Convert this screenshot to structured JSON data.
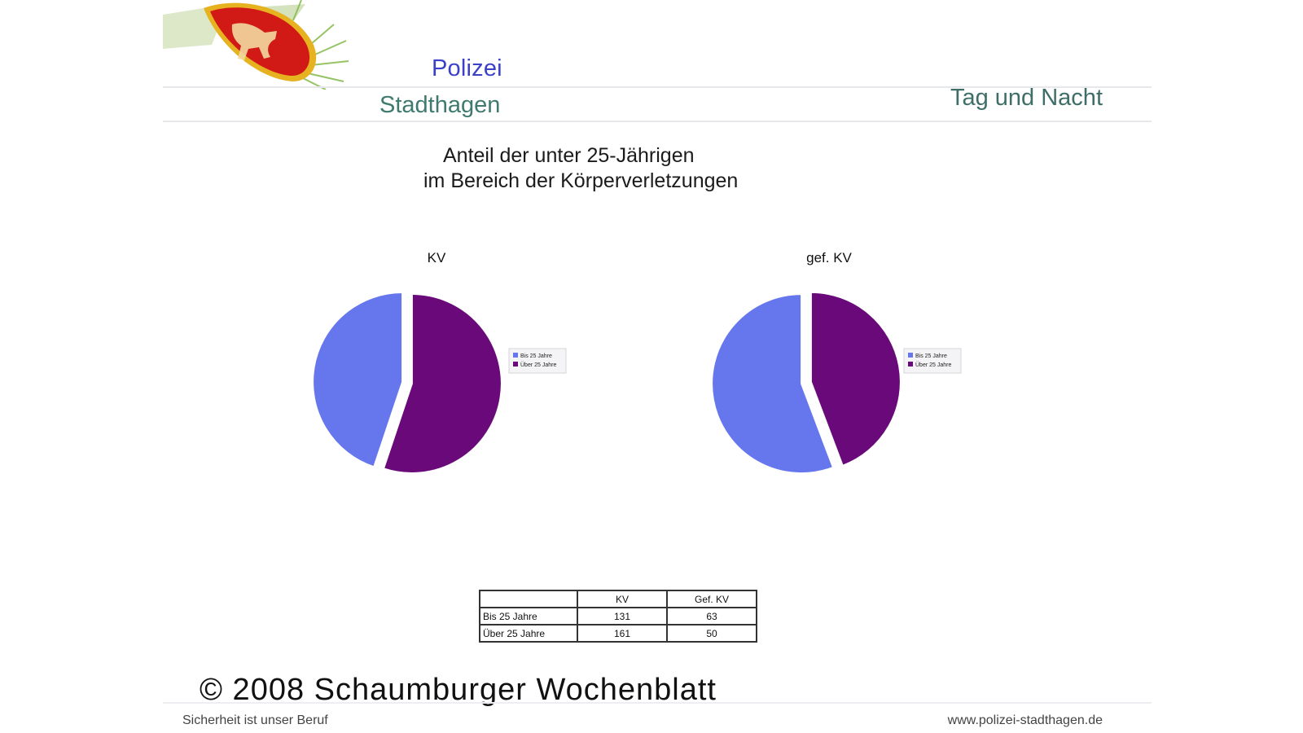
{
  "header": {
    "brand_top": "Polizei",
    "brand_bottom": "Stadthagen",
    "tagline": "Tag und Nacht"
  },
  "slide_title": {
    "line1": "Anteil der unter 25-Jährigen",
    "line2": "im Bereich der Körperverletzungen"
  },
  "chart_data": [
    {
      "type": "pie",
      "title": "KV",
      "categories": [
        "Bis 25 Jahre",
        "Über 25 Jahre"
      ],
      "values": [
        131,
        161
      ],
      "legend_position": "right",
      "colors": [
        "#6677ee",
        "#6a0a7a"
      ]
    },
    {
      "type": "pie",
      "title": "gef. KV",
      "categories": [
        "Bis 25 Jahre",
        "Über 25 Jahre"
      ],
      "values": [
        63,
        50
      ],
      "legend_position": "right",
      "colors": [
        "#6677ee",
        "#6a0a7a"
      ]
    }
  ],
  "table": {
    "headers": [
      "",
      "KV",
      "Gef. KV"
    ],
    "rows": [
      [
        "Bis 25 Jahre",
        "131",
        "63"
      ],
      [
        "Über 25 Jahre",
        "161",
        "50"
      ]
    ]
  },
  "copyright": "© 2008 Schaumburger Wochenblatt",
  "footer": {
    "left": "Sicherheit ist unser Beruf",
    "right": "www.polizei-stadthagen.de"
  },
  "logo": {
    "icon": "police-crest-icon",
    "colors": {
      "shield": "#d11a16",
      "horse": "#f2d9a0",
      "border": "#e6b220",
      "leaves": "#8bbd55"
    }
  }
}
